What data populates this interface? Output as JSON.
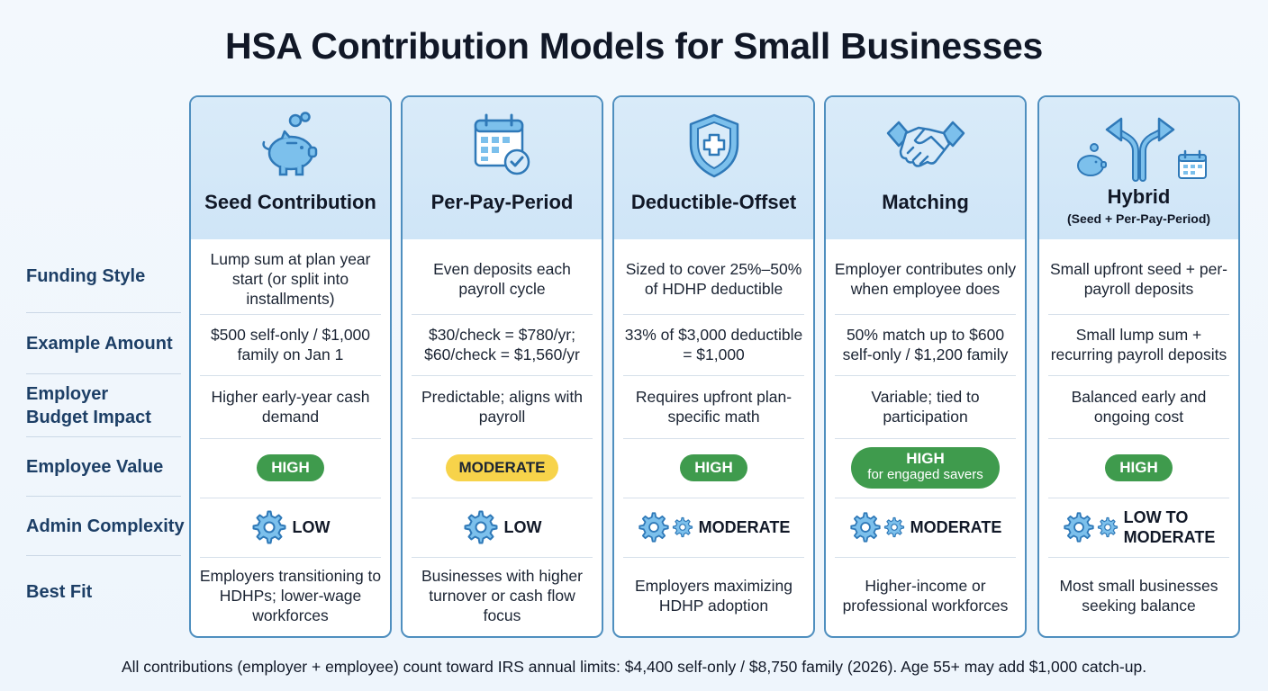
{
  "title": "HSA Contribution Models for Small Businesses",
  "row_labels": {
    "funding_style": "Funding Style",
    "example_amount": "Example Amount",
    "budget_line1": "Employer",
    "budget_line2": "Budget Impact",
    "employee_value": "Employee Value",
    "admin_complexity": "Admin Complexity",
    "best_fit": "Best Fit"
  },
  "columns": [
    {
      "title": "Seed Contribution",
      "icon": "piggy-bank-icon",
      "funding_style": "Lump sum at plan year start (or split into installments)",
      "example_amount": "$500 self-only / $1,000 family on Jan 1",
      "budget_impact": "Higher early-year cash demand",
      "employee_value": "HIGH",
      "admin_complexity": "LOW",
      "best_fit": "Employers transitioning to HDHPs; lower-wage workforces"
    },
    {
      "title": "Per-Pay-Period",
      "icon": "calendar-check-icon",
      "funding_style": "Even deposits each payroll cycle",
      "example_amount": "$30/check = $780/yr; $60/check = $1,560/yr",
      "budget_impact": "Predictable; aligns with payroll",
      "employee_value": "MODERATE",
      "admin_complexity": "LOW",
      "best_fit": "Businesses with higher turnover or cash flow focus"
    },
    {
      "title": "Deductible-Offset",
      "icon": "shield-plus-icon",
      "funding_style": "Sized to cover 25%–50% of HDHP deductible",
      "example_amount": "33% of $3,000 deductible = $1,000",
      "budget_impact": "Requires upfront plan-specific math",
      "employee_value": "HIGH",
      "admin_complexity": "MODERATE",
      "best_fit": "Employers maximizing HDHP adoption"
    },
    {
      "title": "Matching",
      "icon": "handshake-icon",
      "funding_style": "Employer contributes only when employee does",
      "example_amount": "50% match up to $600 self-only / $1,200 family",
      "budget_impact": "Variable; tied to participation",
      "employee_value": "HIGH",
      "employee_value_note": "for engaged savers",
      "admin_complexity": "MODERATE",
      "best_fit": "Higher-income or professional workforces"
    },
    {
      "title": "Hybrid",
      "subtitle": "(Seed + Per-Pay-Period)",
      "icon": "split-arrow-icon",
      "funding_style": "Small upfront seed + per-payroll deposits",
      "example_amount": "Small lump sum + recurring payroll deposits",
      "budget_impact": "Balanced early and ongoing cost",
      "employee_value": "HIGH",
      "admin_complexity_line1": "LOW TO",
      "admin_complexity_line2": "MODERATE",
      "best_fit": "Most small businesses seeking balance"
    }
  ],
  "footer": "All contributions (employer + employee) count toward IRS annual limits: $4,400 self-only / $8,750 family (2026). Age 55+ may add $1,000 catch-up.",
  "colors": {
    "border": "#4f8fbf",
    "header_bg": "#d9ebf9",
    "icon": "#2f79b8",
    "icon_fill": "#7cc0ec",
    "badge_high": "#3f9b4d",
    "badge_moderate": "#f7d34a",
    "row_label": "#1d3f66"
  }
}
